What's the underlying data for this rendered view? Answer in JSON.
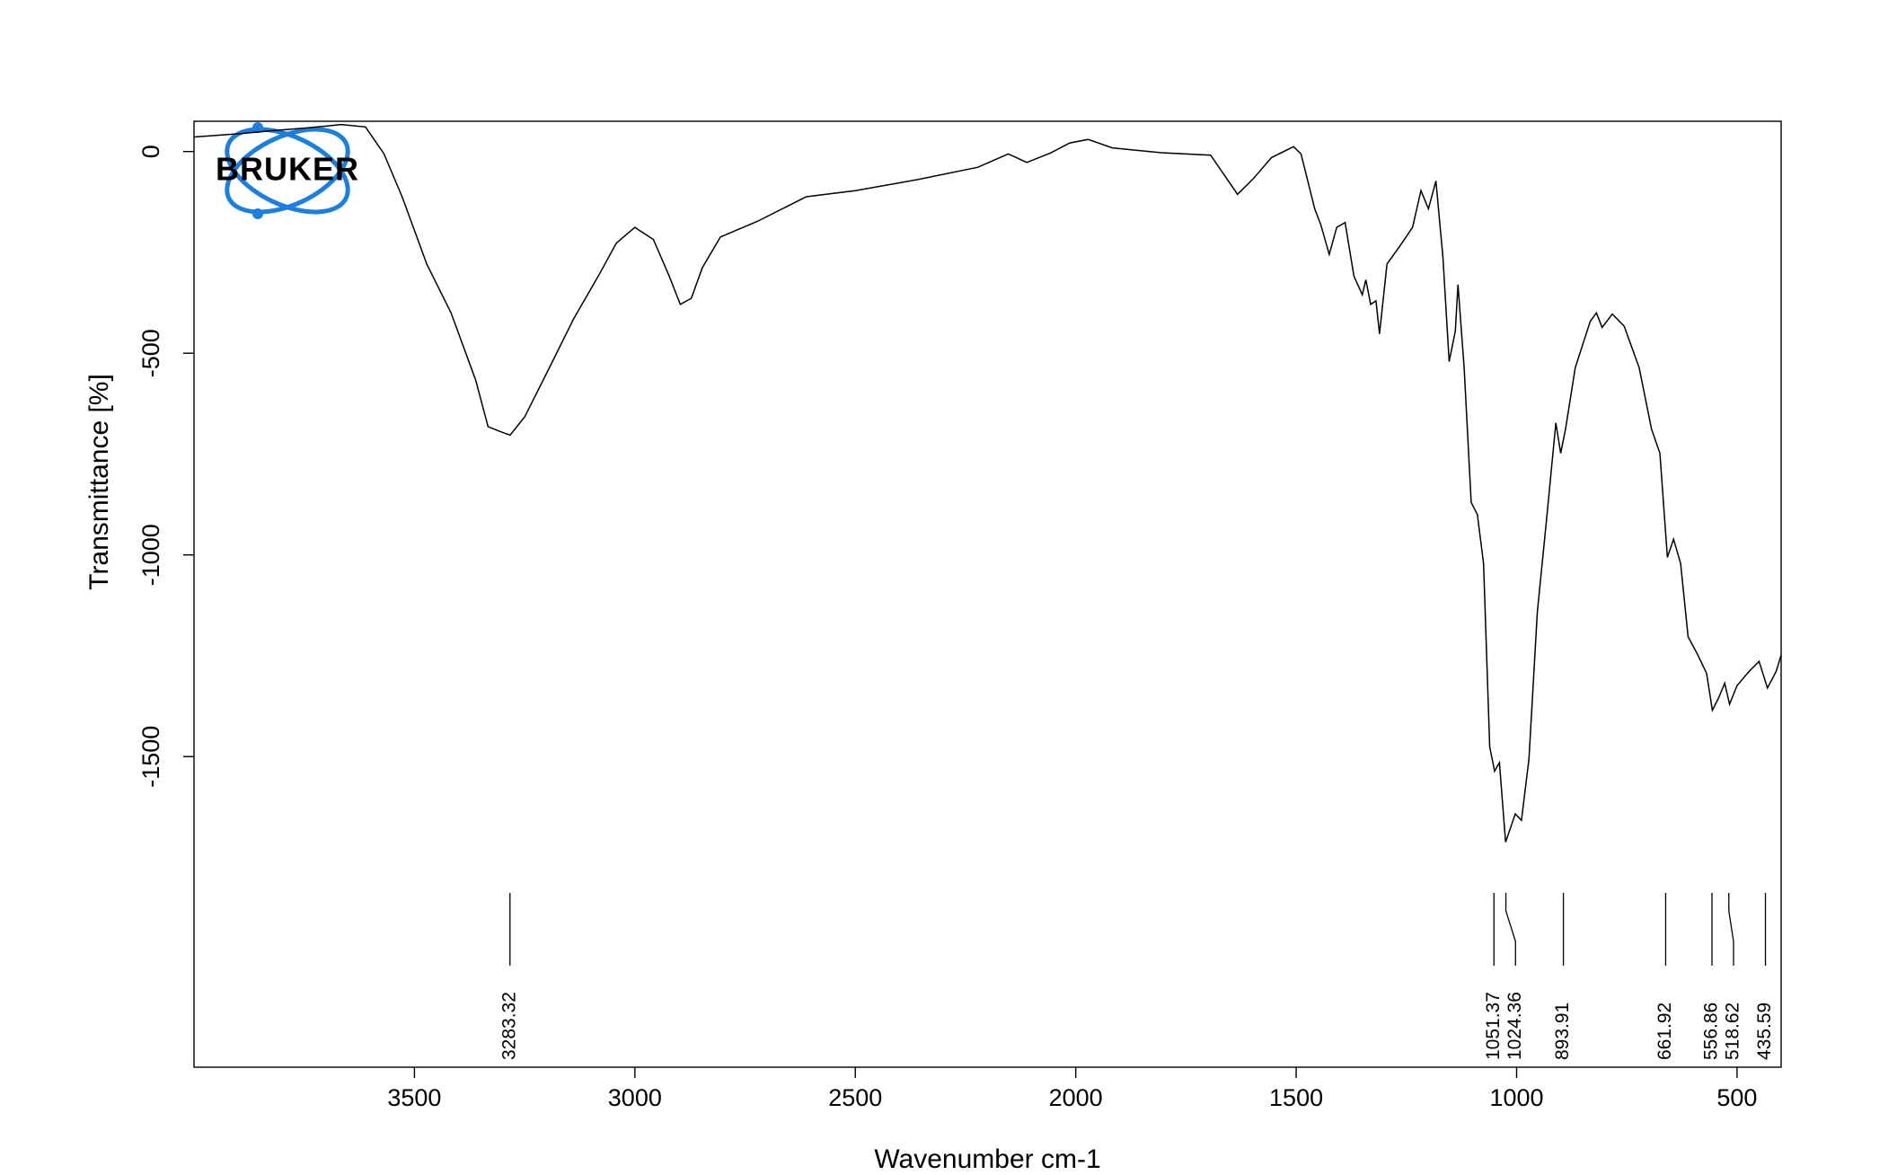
{
  "chart_data": {
    "type": "line",
    "x_label": "Wavenumber cm-1",
    "y_label": "Transmittance [%]",
    "logo": "BRUKER",
    "xlim": [
      4000,
      400
    ],
    "ylim": [
      -2270,
      75
    ],
    "xticks": [
      3500,
      3000,
      2500,
      2000,
      1500,
      1000,
      500
    ],
    "yticks": [
      0,
      -500,
      -1000,
      -1500
    ],
    "x": [
      4000,
      3950,
      3889,
      3820,
      3750,
      3700,
      3667,
      3611,
      3569,
      3528,
      3472,
      3417,
      3361,
      3333,
      3306,
      3283,
      3250,
      3194,
      3139,
      3083,
      3042,
      3000,
      2958,
      2922,
      2897,
      2872,
      2847,
      2806,
      2722,
      2611,
      2500,
      2361,
      2222,
      2153,
      2111,
      2056,
      2014,
      1972,
      1917,
      1806,
      1694,
      1667,
      1633,
      1597,
      1556,
      1506,
      1489,
      1458,
      1444,
      1425,
      1408,
      1389,
      1369,
      1350,
      1342,
      1331,
      1319,
      1311,
      1294,
      1264,
      1236,
      1217,
      1200,
      1183,
      1167,
      1153,
      1139,
      1133,
      1119,
      1103,
      1089,
      1075,
      1061,
      1050,
      1039,
      1025,
      1003,
      989,
      972,
      953,
      931,
      911,
      900,
      889,
      867,
      833,
      819,
      806,
      783,
      756,
      722,
      694,
      675,
      658,
      644,
      628,
      611,
      589,
      569,
      556,
      542,
      528,
      517,
      500,
      472,
      450,
      431,
      411,
      400
    ],
    "series": [
      {
        "color": "#000000",
        "values": [
          36,
          40,
          45,
          52,
          58,
          63,
          67,
          61,
          -6,
          -112,
          -279,
          -400,
          -567,
          -682,
          -694,
          -703,
          -658,
          -536,
          -415,
          -309,
          -227,
          -188,
          -218,
          -309,
          -379,
          -364,
          -288,
          -212,
          -173,
          -112,
          -97,
          -70,
          -39,
          -6,
          -27,
          -3,
          21,
          30,
          9,
          -3,
          -9,
          -52,
          -106,
          -67,
          -15,
          12,
          -6,
          -142,
          -182,
          -255,
          -188,
          -176,
          -309,
          -355,
          -318,
          -379,
          -370,
          -452,
          -279,
          -233,
          -188,
          -97,
          -142,
          -73,
          -264,
          -521,
          -445,
          -330,
          -536,
          -870,
          -900,
          -1021,
          -1476,
          -1536,
          -1515,
          -1712,
          -1642,
          -1658,
          -1506,
          -1142,
          -900,
          -673,
          -748,
          -688,
          -536,
          -421,
          -400,
          -436,
          -403,
          -433,
          -536,
          -688,
          -748,
          -1006,
          -961,
          -1021,
          -1203,
          -1248,
          -1294,
          -1385,
          -1355,
          -1318,
          -1370,
          -1324,
          -1288,
          -1264,
          -1330,
          -1288,
          -1248
        ]
      }
    ],
    "peaks": [
      3283.32,
      1051.37,
      1024.36,
      893.91,
      661.92,
      556.86,
      518.62,
      435.59
    ]
  }
}
